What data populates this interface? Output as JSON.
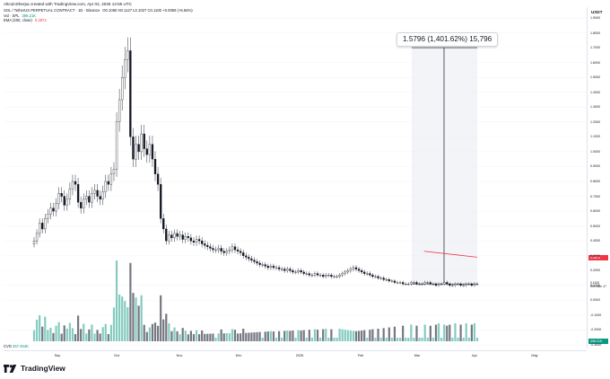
{
  "header": {
    "note": "AltcoinSherpa created with TradingView.com, Apr 02, 2026 14:55 UTC",
    "symbol_line": "SOL / TetherUS PERPETUAL CONTRACT · 1D · Binance",
    "ohlc": "O0.1060 H0.1127 L0.1027 C0.1100 +0.0059 (+5.56%)",
    "volume_label": "Vol · SPL",
    "volume_value": "398.21K",
    "ema_label": "EMA (200, close)",
    "ema_value": "0.2874"
  },
  "price_axis": {
    "unit": "USDT",
    "ticks": [
      "1.9000",
      "1.8000",
      "1.7000",
      "1.6000",
      "1.5000",
      "1.4000",
      "1.3000",
      "1.2000",
      "1.1000",
      "1.0000",
      "0.9000",
      "0.8000",
      "0.7000",
      "0.6000",
      "0.5000",
      "0.4000",
      "0.3000",
      "0.2000",
      "0.1000",
      "0.0000",
      "-0.1000",
      "-0.2000",
      "-0.3000"
    ],
    "ema_tag": "0.2874",
    "price_tag": "0.1100",
    "price_tag_time": "09h 04m 17",
    "volume_tag": "398.21K"
  },
  "measure": {
    "label": "1.5796 (1,401.62%) 15,796"
  },
  "cvd": {
    "label": "CVD",
    "value": "457.454K"
  },
  "time_axis": {
    "labels": [
      "Sep",
      "Oct",
      "Nov",
      "Dec",
      "2026",
      "Feb",
      "Mar",
      "Apr",
      "May"
    ]
  },
  "brand": {
    "name": "TradingView"
  },
  "colors": {
    "up": "#089981",
    "down": "#131722",
    "ema": "#f23645",
    "volume_up": "#70c2b5",
    "volume_down": "#5d606b",
    "measure_fill": "#e8ebf2"
  },
  "chart_data": {
    "type": "candlestick",
    "y_range": [
      -0.3,
      1.9
    ],
    "series": [
      {
        "name": "price",
        "closes": [
          0.4,
          0.45,
          0.52,
          0.48,
          0.55,
          0.58,
          0.62,
          0.6,
          0.65,
          0.72,
          0.7,
          0.64,
          0.68,
          0.75,
          0.8,
          0.78,
          0.66,
          0.62,
          0.68,
          0.7,
          0.66,
          0.72,
          0.74,
          0.7,
          0.68,
          0.73,
          0.8,
          0.78,
          0.85,
          0.88,
          1.2,
          1.35,
          1.5,
          1.62,
          1.68,
          1.1,
          0.95,
          1.05,
          1.0,
          1.12,
          1.02,
          0.98,
          1.05,
          0.95,
          0.85,
          0.78,
          0.55,
          0.48,
          0.4,
          0.44,
          0.42,
          0.45,
          0.43,
          0.44,
          0.41,
          0.43,
          0.42,
          0.4,
          0.39,
          0.41,
          0.4,
          0.38,
          0.37,
          0.36,
          0.35,
          0.34,
          0.34,
          0.35,
          0.33,
          0.32,
          0.33,
          0.34,
          0.36,
          0.34,
          0.33,
          0.32,
          0.3,
          0.29,
          0.28,
          0.27,
          0.26,
          0.25,
          0.24,
          0.24,
          0.23,
          0.22,
          0.23,
          0.22,
          0.22,
          0.21,
          0.21,
          0.2,
          0.21,
          0.2,
          0.19,
          0.19,
          0.2,
          0.19,
          0.18,
          0.18,
          0.17,
          0.17,
          0.18,
          0.17,
          0.17,
          0.16,
          0.17,
          0.17,
          0.16,
          0.16,
          0.16,
          0.17,
          0.18,
          0.19,
          0.2,
          0.21,
          0.22,
          0.21,
          0.2,
          0.19,
          0.18,
          0.18,
          0.17,
          0.16,
          0.16,
          0.15,
          0.15,
          0.14,
          0.14,
          0.13,
          0.13,
          0.12,
          0.12,
          0.12,
          0.11,
          0.11,
          0.11,
          0.12,
          0.12,
          0.11,
          0.11,
          0.11,
          0.12,
          0.12,
          0.11,
          0.11,
          0.1,
          0.11,
          0.11,
          0.12,
          0.11,
          0.1,
          0.1,
          0.11,
          0.11,
          0.1,
          0.1,
          0.11,
          0.11,
          0.1,
          0.11,
          0.11
        ]
      },
      {
        "name": "EMA (200, close)",
        "points": [
          [
            0.88,
            0.33
          ],
          [
            1.0,
            0.29
          ]
        ]
      }
    ]
  }
}
